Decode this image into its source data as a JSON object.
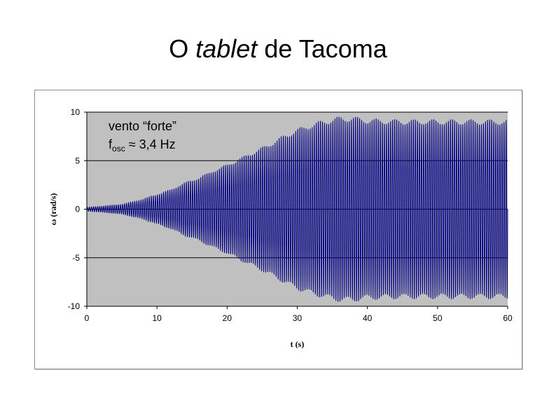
{
  "slide": {
    "title_pre": "O ",
    "title_em": "tablet",
    "title_post": " de Tacoma"
  },
  "annotation": {
    "line1": "vento “forte”",
    "line2_prefix": "f",
    "line2_sub": "osc",
    "line2_value": " ≈ 3,4 Hz"
  },
  "colors": {
    "plot_background": "#c0c0c0",
    "series": "#000080",
    "grid": "#000000"
  },
  "chart_data": {
    "type": "line",
    "title": "",
    "xlabel": "t (s)",
    "ylabel": "ω (rad/s)",
    "xlim": [
      0,
      60
    ],
    "ylim": [
      -10,
      10
    ],
    "x_ticks": [
      "0",
      "10",
      "20",
      "30",
      "40",
      "50",
      "60"
    ],
    "y_ticks": [
      "10",
      "5",
      "0",
      "-5",
      "-10"
    ],
    "grid": "horizontal",
    "legend": "none",
    "series": [
      {
        "frequency_hz": 3.4,
        "envelope": {
          "t": [
            0,
            2,
            5,
            8,
            10,
            12,
            14,
            16,
            18,
            20,
            22,
            24,
            26,
            28,
            30,
            32,
            34,
            36,
            38,
            40,
            45,
            50,
            55,
            60
          ],
          "amplitude": [
            0.2,
            0.3,
            0.5,
            1.0,
            1.5,
            2.0,
            2.7,
            3.2,
            3.9,
            4.5,
            5.2,
            5.9,
            6.6,
            7.4,
            8.1,
            8.6,
            9.0,
            9.3,
            9.3,
            9.1,
            9.0,
            9.0,
            9.0,
            9.0
          ]
        }
      }
    ]
  }
}
